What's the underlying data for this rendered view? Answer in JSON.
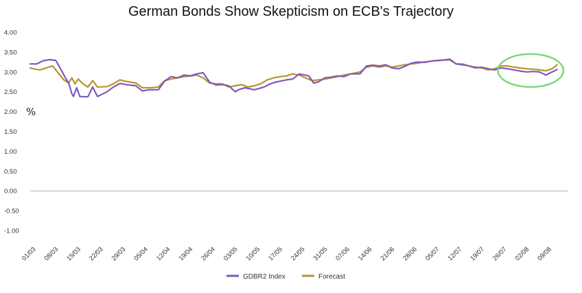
{
  "chart_data": {
    "type": "line",
    "title": "German Bonds Show Skepticism on ECB's Trajectory",
    "ylabel": "%",
    "xlabel": "",
    "ylim": [
      -1.0,
      4.0
    ],
    "y_ticks": [
      "4.00",
      "3.50",
      "3.00",
      "2.50",
      "2.00",
      "1.50",
      "1.00",
      "0.50",
      "0.00",
      "-0.50",
      "-1.00"
    ],
    "x_ticks": [
      "01/03",
      "08/03",
      "15/03",
      "22/03",
      "29/03",
      "05/04",
      "12/04",
      "19/04",
      "26/04",
      "03/05",
      "10/05",
      "17/05",
      "24/05",
      "31/05",
      "07/06",
      "14/06",
      "21/06",
      "28/06",
      "05/07",
      "12/07",
      "19/07",
      "26/07",
      "02/08",
      "09/08"
    ],
    "grid": false,
    "legend_position": "bottom",
    "series": [
      {
        "name": "GDBR2 Index",
        "color": "#7e57c2",
        "values": [
          [
            0.0,
            3.2
          ],
          [
            2.0,
            3.2
          ],
          [
            4.0,
            3.28
          ],
          [
            6.0,
            3.31
          ],
          [
            8.0,
            3.29
          ],
          [
            10.0,
            3.0
          ],
          [
            11.0,
            2.85
          ],
          [
            12.0,
            2.72
          ],
          [
            13.0,
            2.45
          ],
          [
            13.5,
            2.38
          ],
          [
            14.5,
            2.6
          ],
          [
            15.5,
            2.38
          ],
          [
            18.0,
            2.37
          ],
          [
            19.5,
            2.62
          ],
          [
            21.0,
            2.38
          ],
          [
            24.0,
            2.5
          ],
          [
            26.0,
            2.62
          ],
          [
            28.0,
            2.71
          ],
          [
            30.0,
            2.68
          ],
          [
            33.0,
            2.65
          ],
          [
            35.0,
            2.52
          ],
          [
            37.0,
            2.55
          ],
          [
            40.0,
            2.55
          ],
          [
            42.0,
            2.77
          ],
          [
            44.0,
            2.88
          ],
          [
            46.0,
            2.85
          ],
          [
            48.0,
            2.92
          ],
          [
            50.0,
            2.9
          ],
          [
            52.0,
            2.95
          ],
          [
            54.0,
            2.98
          ],
          [
            56.0,
            2.74
          ],
          [
            58.0,
            2.67
          ],
          [
            60.0,
            2.68
          ],
          [
            62.0,
            2.65
          ],
          [
            64.0,
            2.5
          ],
          [
            65.0,
            2.55
          ],
          [
            67.0,
            2.6
          ],
          [
            70.0,
            2.55
          ],
          [
            73.0,
            2.62
          ],
          [
            75.0,
            2.7
          ],
          [
            77.0,
            2.75
          ],
          [
            80.0,
            2.8
          ],
          [
            82.0,
            2.82
          ],
          [
            84.0,
            2.95
          ],
          [
            87.0,
            2.9
          ],
          [
            88.5,
            2.72
          ],
          [
            90.0,
            2.75
          ],
          [
            92.0,
            2.85
          ],
          [
            94.0,
            2.87
          ],
          [
            96.0,
            2.9
          ],
          [
            98.0,
            2.88
          ],
          [
            100.0,
            2.95
          ],
          [
            103.0,
            2.95
          ],
          [
            105.0,
            3.15
          ],
          [
            107.0,
            3.17
          ],
          [
            109.0,
            3.15
          ],
          [
            111.0,
            3.18
          ],
          [
            113.0,
            3.1
          ],
          [
            115.0,
            3.08
          ],
          [
            117.0,
            3.14
          ],
          [
            119.0,
            3.22
          ],
          [
            121.0,
            3.25
          ],
          [
            123.0,
            3.24
          ],
          [
            126.0,
            3.28
          ],
          [
            129.0,
            3.3
          ],
          [
            131.0,
            3.32
          ],
          [
            133.0,
            3.2
          ],
          [
            135.0,
            3.18
          ],
          [
            137.0,
            3.15
          ],
          [
            139.0,
            3.1
          ],
          [
            141.0,
            3.12
          ],
          [
            143.0,
            3.08
          ],
          [
            145.0,
            3.05
          ],
          [
            147.0,
            3.1
          ],
          [
            149.0,
            3.08
          ],
          [
            151.0,
            3.05
          ],
          [
            153.0,
            3.02
          ],
          [
            155.0,
            3.0
          ],
          [
            157.0,
            3.01
          ],
          [
            159.0,
            3.0
          ],
          [
            161.0,
            2.92
          ],
          [
            163.0,
            3.0
          ],
          [
            164.5,
            3.06
          ]
        ]
      },
      {
        "name": "Forecast",
        "color": "#b8922a",
        "values": [
          [
            0.0,
            3.1
          ],
          [
            1.5,
            3.07
          ],
          [
            3.0,
            3.05
          ],
          [
            5.0,
            3.1
          ],
          [
            7.0,
            3.15
          ],
          [
            9.0,
            2.95
          ],
          [
            10.5,
            2.8
          ],
          [
            12.0,
            2.72
          ],
          [
            13.0,
            2.85
          ],
          [
            14.0,
            2.7
          ],
          [
            15.0,
            2.82
          ],
          [
            16.5,
            2.7
          ],
          [
            18.0,
            2.62
          ],
          [
            19.5,
            2.78
          ],
          [
            21.0,
            2.62
          ],
          [
            24.0,
            2.63
          ],
          [
            26.0,
            2.7
          ],
          [
            28.0,
            2.8
          ],
          [
            30.0,
            2.76
          ],
          [
            33.0,
            2.72
          ],
          [
            35.0,
            2.6
          ],
          [
            38.0,
            2.6
          ],
          [
            40.0,
            2.62
          ],
          [
            42.0,
            2.78
          ],
          [
            44.0,
            2.82
          ],
          [
            46.0,
            2.85
          ],
          [
            48.0,
            2.88
          ],
          [
            50.0,
            2.9
          ],
          [
            52.0,
            2.92
          ],
          [
            54.0,
            2.85
          ],
          [
            56.0,
            2.72
          ],
          [
            58.0,
            2.7
          ],
          [
            60.0,
            2.7
          ],
          [
            62.0,
            2.62
          ],
          [
            64.0,
            2.65
          ],
          [
            66.0,
            2.68
          ],
          [
            68.0,
            2.62
          ],
          [
            70.0,
            2.65
          ],
          [
            72.0,
            2.7
          ],
          [
            74.0,
            2.8
          ],
          [
            76.0,
            2.85
          ],
          [
            78.0,
            2.88
          ],
          [
            80.0,
            2.9
          ],
          [
            82.0,
            2.95
          ],
          [
            84.0,
            2.92
          ],
          [
            86.0,
            2.85
          ],
          [
            88.0,
            2.78
          ],
          [
            90.0,
            2.8
          ],
          [
            92.0,
            2.82
          ],
          [
            94.0,
            2.85
          ],
          [
            96.0,
            2.88
          ],
          [
            98.0,
            2.92
          ],
          [
            100.0,
            2.95
          ],
          [
            103.0,
            3.0
          ],
          [
            105.0,
            3.12
          ],
          [
            107.0,
            3.15
          ],
          [
            109.0,
            3.12
          ],
          [
            111.0,
            3.15
          ],
          [
            113.0,
            3.12
          ],
          [
            115.0,
            3.15
          ],
          [
            117.0,
            3.18
          ],
          [
            119.0,
            3.2
          ],
          [
            121.0,
            3.22
          ],
          [
            123.0,
            3.25
          ],
          [
            126.0,
            3.28
          ],
          [
            129.0,
            3.3
          ],
          [
            131.0,
            3.3
          ],
          [
            133.0,
            3.2
          ],
          [
            135.0,
            3.2
          ],
          [
            137.0,
            3.15
          ],
          [
            139.0,
            3.12
          ],
          [
            141.0,
            3.1
          ],
          [
            143.0,
            3.05
          ],
          [
            145.0,
            3.08
          ],
          [
            147.0,
            3.15
          ],
          [
            149.0,
            3.15
          ],
          [
            151.0,
            3.12
          ],
          [
            153.0,
            3.1
          ],
          [
            155.0,
            3.08
          ],
          [
            157.0,
            3.07
          ],
          [
            159.0,
            3.05
          ],
          [
            161.0,
            3.03
          ],
          [
            163.0,
            3.08
          ],
          [
            164.5,
            3.18
          ]
        ]
      }
    ],
    "annotations": [
      {
        "shape": "ellipse",
        "color": "#7cd67c",
        "x_range": [
          146.0,
          166.5
        ],
        "y_range": [
          2.62,
          3.45
        ]
      }
    ]
  }
}
